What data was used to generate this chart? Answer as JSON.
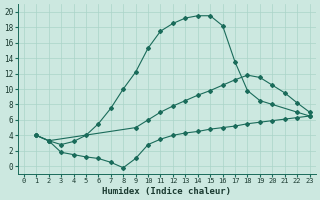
{
  "xlabel": "Humidex (Indice chaleur)",
  "bg_color": "#cce8e0",
  "grid_color": "#aad4c8",
  "line_color": "#1a6b5a",
  "xlim": [
    -0.5,
    23.5
  ],
  "ylim": [
    -1,
    21
  ],
  "xticks": [
    0,
    1,
    2,
    3,
    4,
    5,
    6,
    7,
    8,
    9,
    10,
    11,
    12,
    13,
    14,
    15,
    16,
    17,
    18,
    19,
    20,
    21,
    22,
    23
  ],
  "yticks": [
    0,
    2,
    4,
    6,
    8,
    10,
    12,
    14,
    16,
    18,
    20
  ],
  "curve1_x": [
    1,
    2,
    3,
    4,
    5,
    6,
    7,
    8,
    9,
    10,
    11,
    12,
    13,
    14,
    15,
    16,
    17,
    18,
    19,
    20,
    22,
    23
  ],
  "curve1_y": [
    4,
    3.3,
    2.8,
    3.2,
    4.0,
    5.5,
    7.5,
    10.0,
    12.2,
    15.3,
    17.5,
    18.5,
    19.2,
    19.5,
    19.5,
    18.2,
    13.5,
    9.8,
    8.5,
    8.0,
    7.0,
    6.5
  ],
  "curve2_x": [
    1,
    2,
    9,
    10,
    11,
    12,
    13,
    14,
    15,
    16,
    17,
    18,
    19,
    20,
    21,
    22,
    23
  ],
  "curve2_y": [
    4,
    3.3,
    5.0,
    6.0,
    7.0,
    7.8,
    8.5,
    9.2,
    9.8,
    10.5,
    11.2,
    11.8,
    11.5,
    10.5,
    9.5,
    8.2,
    7.0
  ],
  "curve3_x": [
    1,
    2,
    3,
    4,
    5,
    6,
    7,
    8,
    9,
    10,
    11,
    12,
    13,
    14,
    15,
    16,
    17,
    18,
    19,
    20,
    21,
    22,
    23
  ],
  "curve3_y": [
    4,
    3.3,
    1.8,
    1.5,
    1.2,
    1.0,
    0.5,
    -0.2,
    1.0,
    2.8,
    3.5,
    4.0,
    4.3,
    4.5,
    4.8,
    5.0,
    5.2,
    5.5,
    5.7,
    5.9,
    6.1,
    6.3,
    6.5
  ],
  "marker": "D",
  "marker_size": 2.0,
  "linewidth": 0.8
}
